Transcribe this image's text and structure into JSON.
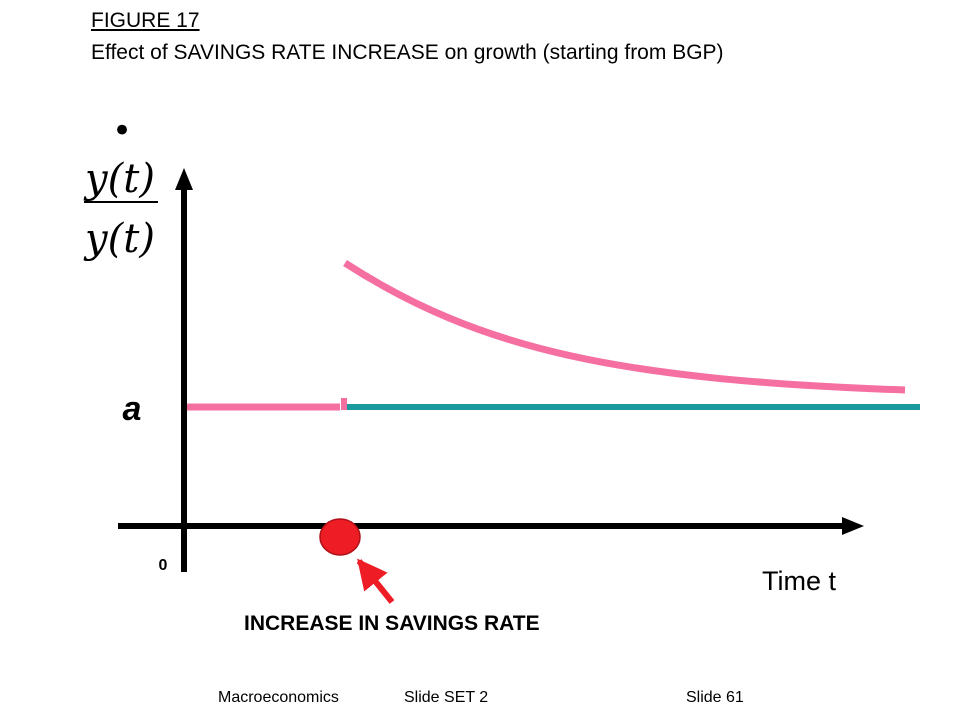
{
  "title": "FIGURE 17",
  "subtitle": "Effect of SAVINGS RATE INCREASE on growth (starting from BGP)",
  "y_axis_label": {
    "numerator": "y(t)",
    "denominator": "y(t)",
    "dot": "•"
  },
  "level_label": "a",
  "origin_label": "0",
  "x_axis_label": "Time t",
  "event_label": "INCREASE IN SAVINGS RATE",
  "footer": {
    "course": "Macroeconomics",
    "set": "Slide SET 2",
    "slide": "Slide 61"
  },
  "colors": {
    "growth_path": "#f56fa1",
    "bgp_line": "#1a9a9c",
    "event_marker": "#ee1c24",
    "axes": "#000000"
  }
}
